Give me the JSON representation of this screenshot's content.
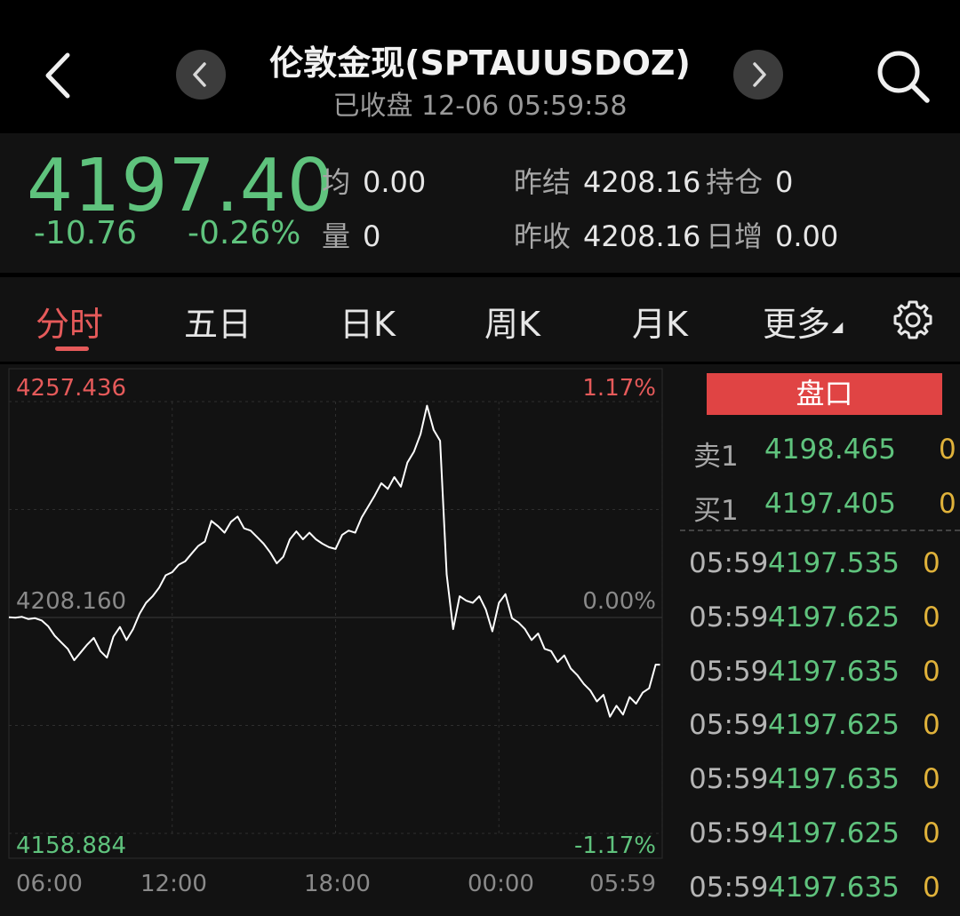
{
  "header": {
    "title": "伦敦金现(SPTAUUSDOZ)",
    "subtitle": "已收盘 12-06 05:59:58"
  },
  "quote": {
    "price": "4197.40",
    "change": "-10.76",
    "change_pct": "-0.26%",
    "stats": [
      {
        "label": "均",
        "value": "0.00"
      },
      {
        "label": "量",
        "value": "0"
      },
      {
        "label": "昨结",
        "value": "4208.16"
      },
      {
        "label": "昨收",
        "value": "4208.16"
      },
      {
        "label": "持仓",
        "value": "0"
      },
      {
        "label": "日增",
        "value": "0.00"
      }
    ]
  },
  "tabs": [
    {
      "label": "分时",
      "active": true
    },
    {
      "label": "五日"
    },
    {
      "label": "日K"
    },
    {
      "label": "周K"
    },
    {
      "label": "月K"
    },
    {
      "label": "更多"
    }
  ],
  "chart_data": {
    "type": "line",
    "y_axis": {
      "max": "4257.436",
      "mid": "4208.160",
      "min": "4158.884"
    },
    "pct_axis": {
      "max": "1.17%",
      "mid": "0.00%",
      "min": "-1.17%"
    },
    "ylim": [
      4158.884,
      4257.436
    ],
    "baseline": 4208.16,
    "x_ticks": [
      "06:00",
      "12:00",
      "18:00",
      "00:00",
      "05:59"
    ],
    "series": [
      {
        "x": [
          0,
          0.3,
          0.6,
          0.9,
          1.2,
          1.5,
          1.8,
          2.1,
          2.4,
          2.7,
          3.0,
          3.3,
          3.6,
          3.9,
          4.2,
          4.5,
          4.8,
          5.1,
          5.4,
          5.7,
          6.0,
          6.3,
          6.6,
          6.9,
          7.2,
          7.5,
          7.8,
          8.1,
          8.4,
          8.7,
          9.0,
          9.3,
          9.6,
          9.9,
          10.2,
          10.5,
          10.8,
          11.1,
          11.4,
          11.7,
          12.0,
          12.3,
          12.6,
          12.9,
          13.2,
          13.5,
          13.8,
          14.1,
          14.4,
          14.7,
          15.0,
          15.3,
          15.6,
          15.9,
          16.2,
          16.5,
          16.8,
          17.1,
          17.4,
          17.7,
          18.0,
          18.3,
          18.6,
          18.9,
          19.2,
          19.5,
          19.8,
          20.1,
          20.4,
          20.7,
          21.0,
          21.3,
          21.6,
          21.9,
          22.2,
          22.5,
          22.8,
          23.1,
          23.4,
          23.7,
          24.0,
          24.3,
          24.6,
          24.9,
          25.2,
          25.5,
          25.8,
          26.1,
          26.4,
          26.7,
          27.0,
          27.3,
          27.6,
          27.9,
          28.2,
          28.5,
          28.8,
          29.1,
          29.4,
          29.7,
          29.9
        ],
        "values": [
          4208.2,
          4208.1,
          4208.3,
          4207.8,
          4208.0,
          4207.5,
          4206.2,
          4204.0,
          4202.5,
          4201.0,
          4198.4,
          4200.2,
          4202.0,
          4203.5,
          4200.5,
          4199.0,
          4203.8,
          4206.0,
          4203.0,
          4205.5,
          4209.0,
          4211.5,
          4213.0,
          4215.0,
          4217.8,
          4218.5,
          4220.2,
          4221.0,
          4222.8,
          4224.5,
          4225.5,
          4230.2,
          4229.0,
          4227.5,
          4230.0,
          4231.2,
          4228.5,
          4228.0,
          4226.5,
          4225.0,
          4223.0,
          4220.5,
          4222.0,
          4226.0,
          4227.8,
          4226.0,
          4227.5,
          4226.0,
          4225.0,
          4224.2,
          4223.8,
          4227.0,
          4228.0,
          4227.5,
          4231.0,
          4233.5,
          4236.0,
          4238.8,
          4237.5,
          4240.2,
          4238.0,
          4243.5,
          4246.0,
          4250.0,
          4256.5,
          4251.0,
          4248.5,
          4218.0,
          4205.5,
          4213.0,
          4212.0,
          4211.5,
          4213.0,
          4210.0,
          4205.0,
          4211.5,
          4213.5,
          4208.0,
          4207.0,
          4205.5,
          4203.0,
          4204.5,
          4201.0,
          4200.5,
          4198.0,
          4199.5,
          4196.5,
          4195.0,
          4193.0,
          4191.5,
          4189.0,
          4190.5,
          4185.5,
          4188.0,
          4186.0,
          4190.0,
          4188.5,
          4191.0,
          4192.0,
          4197.4,
          4197.4
        ]
      }
    ]
  },
  "order_book": {
    "button": "盘口",
    "rows": [
      {
        "label": "卖1",
        "price": "4198.465",
        "vol": "0"
      },
      {
        "label": "买1",
        "price": "4197.405",
        "vol": "0"
      }
    ],
    "trades": [
      {
        "time": "05:59",
        "price": "4197.535",
        "vol": "0"
      },
      {
        "time": "05:59",
        "price": "4197.625",
        "vol": "0"
      },
      {
        "time": "05:59",
        "price": "4197.635",
        "vol": "0"
      },
      {
        "time": "05:59",
        "price": "4197.625",
        "vol": "0"
      },
      {
        "time": "05:59",
        "price": "4197.635",
        "vol": "0"
      },
      {
        "time": "05:59",
        "price": "4197.625",
        "vol": "0"
      },
      {
        "time": "05:59",
        "price": "4197.635",
        "vol": "0"
      }
    ]
  },
  "colors": {
    "up": "#e55a5a",
    "down": "#5fc37d",
    "line": "#ffffff",
    "accent": "#e04444"
  },
  "icons": {
    "back": "chevron-left-icon",
    "prev": "chevron-left-icon",
    "next": "chevron-right-icon",
    "search": "search-icon",
    "settings": "gear-icon"
  }
}
